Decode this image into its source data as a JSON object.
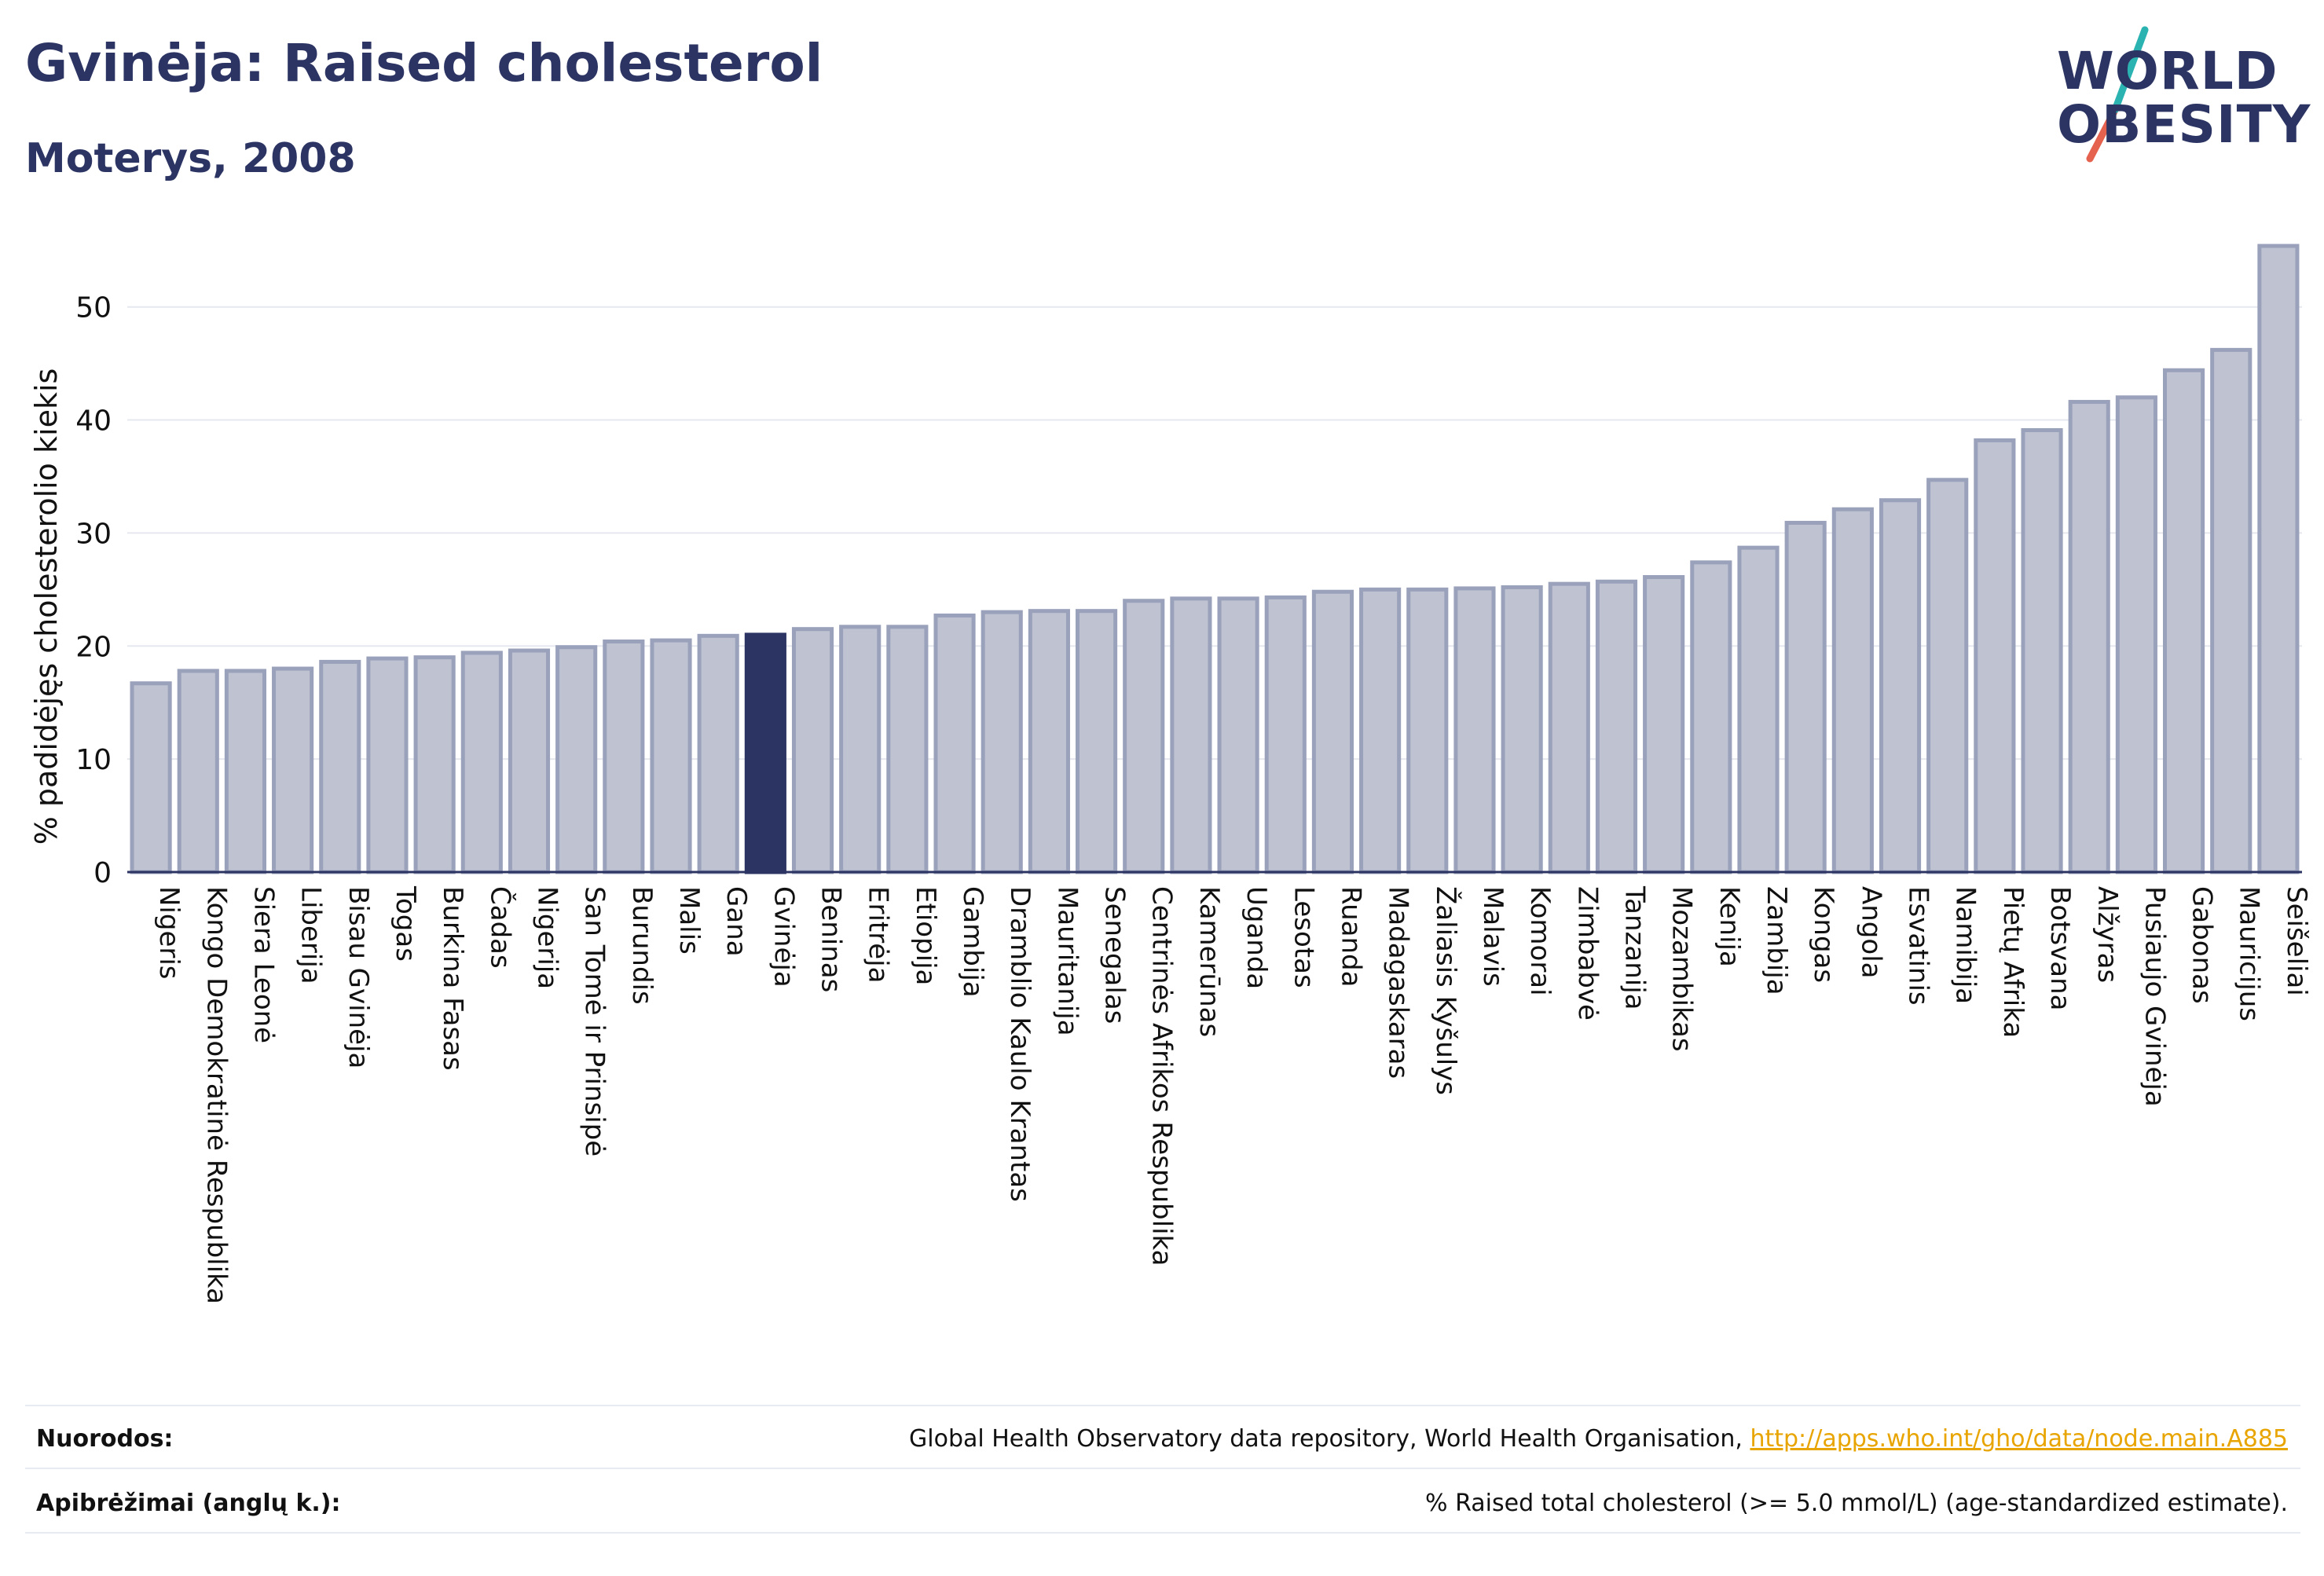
{
  "header": {
    "title": "Gvinėja: Raised cholesterol",
    "subtitle": "Moterys, 2008"
  },
  "logo": {
    "line1": "WORLD",
    "line2": "OBESITY",
    "slash_colors": [
      "#2ab3b1",
      "#e5624f"
    ]
  },
  "colors": {
    "bar": "#bec2d1",
    "bar_border": "#9aa1ba",
    "highlight": "#2b3462",
    "axis": "#2b3462",
    "grid": "#e6e8ef"
  },
  "chart_data": {
    "type": "bar",
    "title": "Gvinėja: Raised cholesterol",
    "subtitle": "Moterys, 2008",
    "ylabel": "% padidėjęs cholesterolio kiekis",
    "xlabel": "",
    "ylim": [
      0,
      57
    ],
    "yticks": [
      0,
      10,
      20,
      30,
      40,
      50
    ],
    "grid": true,
    "highlight": "Gvinėja",
    "categories": [
      "Nigeris",
      "Kongo Demokratinė Respublika",
      "Siera Leonė",
      "Liberija",
      "Bisau Gvinėja",
      "Togas",
      "Burkina Fasas",
      "Čadas",
      "Nigerija",
      "San Tomė ir Prinsipė",
      "Burundis",
      "Malis",
      "Gana",
      "Gvinėja",
      "Beninas",
      "Eritrėja",
      "Etiopija",
      "Gambija",
      "Dramblio Kaulo Krantas",
      "Mauritanija",
      "Senegalas",
      "Centrinės Afrikos Respublika",
      "Kamerūnas",
      "Uganda",
      "Lesotas",
      "Ruanda",
      "Madagaskaras",
      "Žaliasis Kyšulys",
      "Malavis",
      "Komorai",
      "Zimbabvė",
      "Tanzanija",
      "Mozambikas",
      "Kenija",
      "Zambija",
      "Kongas",
      "Angola",
      "Esvatinis",
      "Namibija",
      "Pietų Afrika",
      "Botsvana",
      "Alžyras",
      "Pusiaujo Gvinėja",
      "Gabonas",
      "Mauricijus",
      "Seišeliai"
    ],
    "values": [
      16.7,
      17.8,
      17.8,
      18.0,
      18.6,
      18.9,
      19.0,
      19.4,
      19.6,
      19.9,
      20.4,
      20.5,
      20.9,
      21.0,
      21.5,
      21.7,
      21.7,
      22.7,
      23.0,
      23.1,
      23.1,
      24.0,
      24.2,
      24.2,
      24.3,
      24.8,
      25.0,
      25.0,
      25.1,
      25.2,
      25.5,
      25.7,
      26.1,
      27.4,
      28.7,
      30.9,
      32.1,
      32.9,
      34.7,
      38.2,
      39.1,
      41.6,
      42.0,
      44.4,
      46.2,
      55.4
    ]
  },
  "footer": {
    "sources_label": "Nuorodos:",
    "sources_text": "Global Health Observatory data repository, World Health Organisation, ",
    "sources_link": "http://apps.who.int/gho/data/node.main.A885",
    "definitions_label": "Apibrėžimai (anglų k.):",
    "definitions_text": "% Raised total cholesterol (>= 5.0 mmol/L) (age-standardized estimate)."
  }
}
